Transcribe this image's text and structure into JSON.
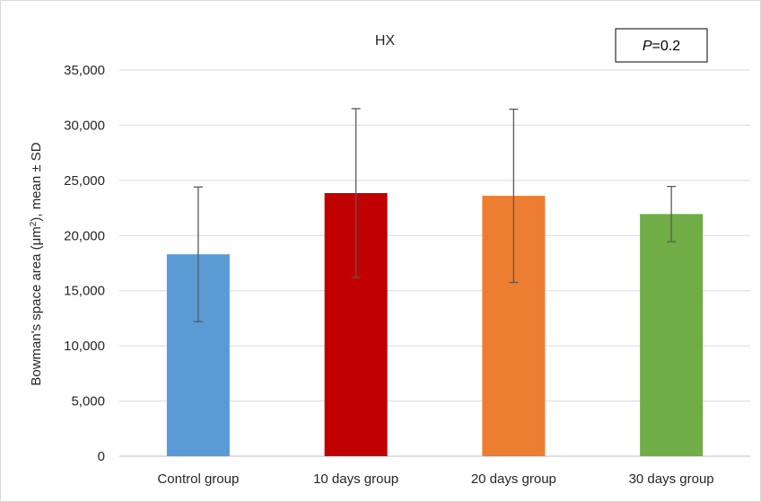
{
  "chart_data": {
    "type": "bar",
    "title": "HX",
    "ylabel_prefix": "Bowman's space area (μm",
    "ylabel_sup": "2",
    "ylabel_suffix": "), mean ± SD",
    "xlabel": "",
    "categories": [
      "Control group",
      "10 days group",
      "20 days group",
      "30 days group"
    ],
    "values": [
      18300,
      23850,
      23600,
      21950
    ],
    "errors": [
      6100,
      7650,
      7850,
      2500
    ],
    "colors": [
      "#5b9bd5",
      "#c00000",
      "#ed7d31",
      "#70ad47"
    ],
    "ylim": [
      0,
      35000
    ],
    "yticks": [
      0,
      5000,
      10000,
      15000,
      20000,
      25000,
      30000,
      35000
    ],
    "ytick_labels": [
      "0",
      "5,000",
      "10,000",
      "15,000",
      "20,000",
      "25,000",
      "30,000",
      "35,000"
    ],
    "grid": true,
    "annotation": {
      "p_italic": "P",
      "p_rest": "=0.2"
    }
  }
}
